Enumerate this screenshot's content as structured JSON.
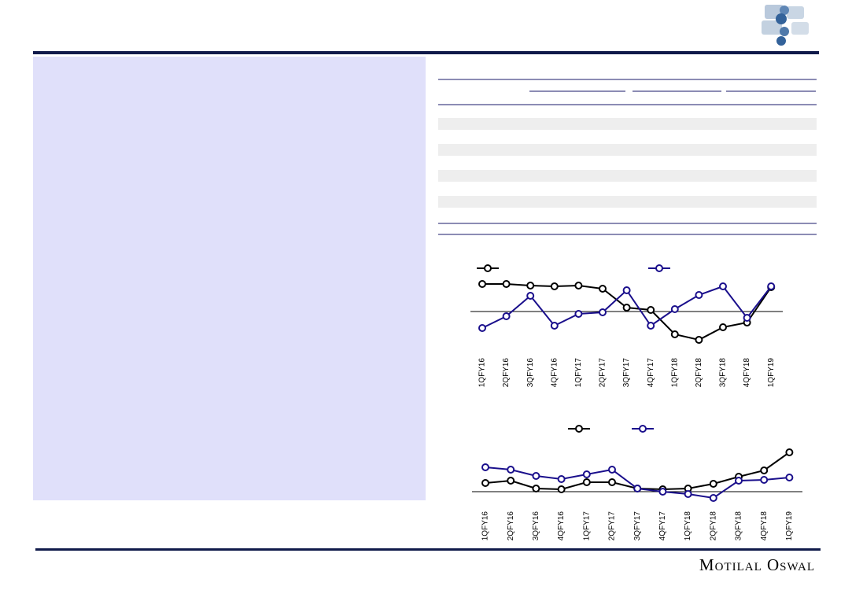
{
  "chart_data": [
    {
      "type": "line",
      "categories": [
        "1QFY16",
        "2QFY16",
        "3QFY16",
        "4QFY16",
        "1QFY17",
        "2QFY17",
        "3QFY17",
        "4QFY17",
        "1QFY18",
        "2QFY18",
        "3QFY18",
        "4QFY18",
        "1QFY19"
      ],
      "series": [
        {
          "color": "#000000",
          "values": [
            3.5,
            3.5,
            3.3,
            3.2,
            3.3,
            2.9,
            0.5,
            0.2,
            -2.9,
            -3.6,
            -2.0,
            -1.4,
            3.1
          ]
        },
        {
          "color": "#1a0f8c",
          "values": [
            -2.1,
            -0.6,
            2.0,
            -1.8,
            -0.3,
            -0.1,
            2.7,
            -1.8,
            0.3,
            2.1,
            3.2,
            -0.8,
            3.2
          ]
        }
      ],
      "ylim": [
        -4.5,
        4.5
      ]
    },
    {
      "type": "line",
      "categories": [
        "1QFY16",
        "2QFY16",
        "3QFY16",
        "4QFY16",
        "1QFY17",
        "2QFY17",
        "3QFY17",
        "4QFY17",
        "1QFY18",
        "2QFY18",
        "3QFY18",
        "4QFY18",
        "1QFY19"
      ],
      "series": [
        {
          "color": "#000000",
          "values": [
            1.1,
            1.4,
            0.4,
            0.3,
            1.2,
            1.2,
            0.4,
            0.3,
            0.4,
            1.0,
            1.9,
            2.7,
            5.0
          ]
        },
        {
          "color": "#1a0f8c",
          "values": [
            3.1,
            2.8,
            2.0,
            1.6,
            2.2,
            2.8,
            0.4,
            0.0,
            -0.3,
            -0.8,
            1.4,
            1.5,
            1.8
          ]
        }
      ],
      "ylim": [
        -1.5,
        5.5
      ]
    }
  ],
  "footer": {
    "brand": "Motilal Oswal"
  }
}
